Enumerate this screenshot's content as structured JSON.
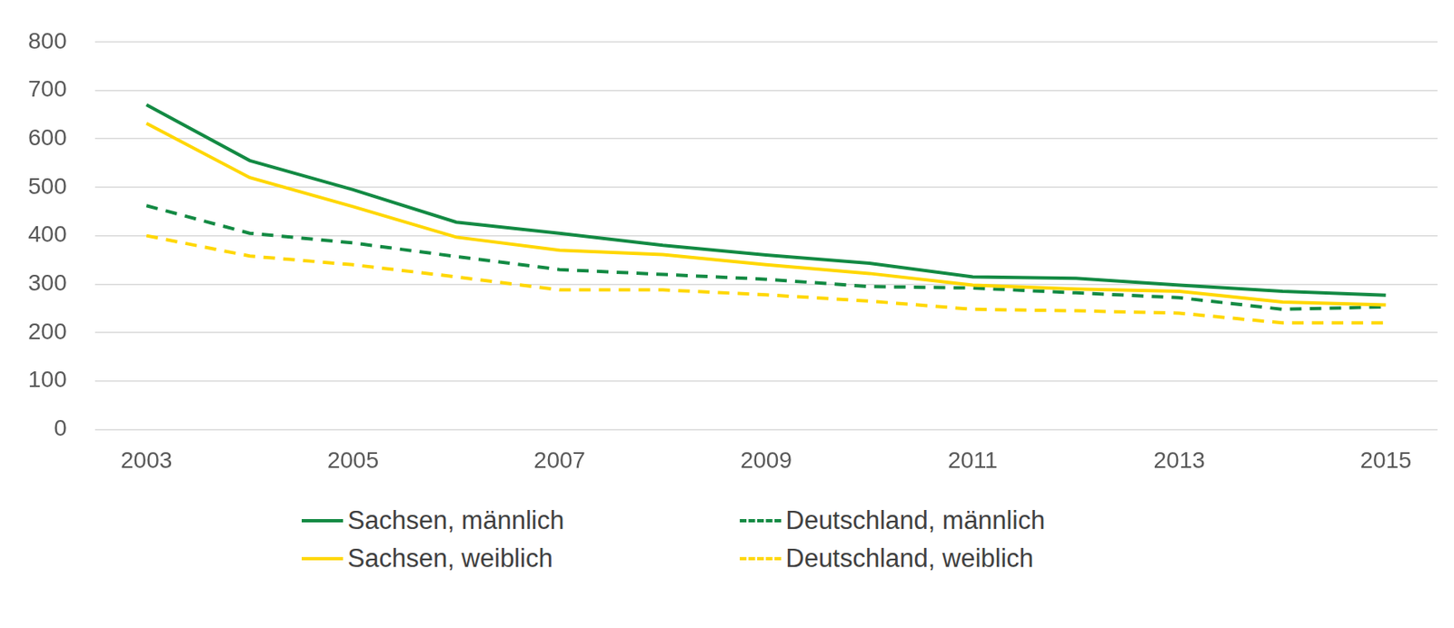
{
  "chart_data": {
    "type": "line",
    "categories": [
      "2003",
      null,
      "2005",
      null,
      "2007",
      null,
      "2009",
      null,
      "2011",
      null,
      "2013",
      null,
      "2015"
    ],
    "series": [
      {
        "name": "Sachsen, männlich",
        "color": "#138a43",
        "line_style": "solid",
        "values": [
          670,
          555,
          495,
          428,
          405,
          380,
          360,
          343,
          315,
          312,
          298,
          285,
          277
        ]
      },
      {
        "name": "Sachsen, weiblich",
        "color": "#ffd700",
        "line_style": "solid",
        "values": [
          632,
          520,
          460,
          397,
          370,
          361,
          340,
          322,
          298,
          290,
          285,
          263,
          257
        ]
      },
      {
        "name": "Deutschland, männlich",
        "color": "#138a43",
        "line_style": "dashed",
        "values": [
          462,
          405,
          385,
          357,
          330,
          320,
          310,
          295,
          292,
          282,
          272,
          248,
          253
        ]
      },
      {
        "name": "Deutschland, weiblich",
        "color": "#ffd700",
        "line_style": "dashed",
        "values": [
          400,
          358,
          340,
          315,
          288,
          288,
          278,
          265,
          248,
          245,
          240,
          220,
          220
        ]
      }
    ],
    "ylim": [
      0,
      800
    ],
    "yticks": [
      0,
      100,
      200,
      300,
      400,
      500,
      600,
      700,
      800
    ],
    "grid": true,
    "legend": "bottom"
  }
}
